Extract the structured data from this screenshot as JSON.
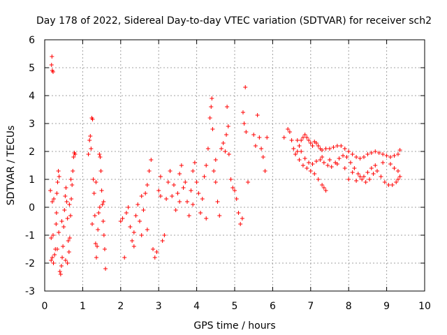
{
  "chart_data": {
    "type": "scatter",
    "title": "Day 178 of 2022, Sidereal Day-to-day VTEC variation (SDTVAR) for receiver sch2",
    "xlabel": "GPS time / hours",
    "ylabel": "SDTVAR / TECUs",
    "xlim": [
      0,
      10
    ],
    "ylim": [
      -3,
      6
    ],
    "xticks": [
      0,
      1,
      2,
      3,
      4,
      5,
      6,
      7,
      8,
      9,
      10
    ],
    "yticks": [
      -3,
      -2,
      -1,
      0,
      1,
      2,
      3,
      4,
      5,
      6
    ],
    "grid": true,
    "marker": "+",
    "color": "#ff0000",
    "series": [
      {
        "name": "SDTVAR",
        "points": [
          [
            0.15,
            0.6
          ],
          [
            0.17,
            -1.1
          ],
          [
            0.18,
            5.1
          ],
          [
            0.19,
            5.4
          ],
          [
            0.2,
            4.9
          ],
          [
            0.22,
            4.85
          ],
          [
            0.24,
            0.3
          ],
          [
            0.2,
            0.2
          ],
          [
            0.22,
            -1.0
          ],
          [
            0.17,
            -1.9
          ],
          [
            0.2,
            -1.8
          ],
          [
            0.23,
            -2.0
          ],
          [
            0.26,
            -1.7
          ],
          [
            0.28,
            -1.5
          ],
          [
            0.3,
            -0.6
          ],
          [
            0.31,
            -0.2
          ],
          [
            0.32,
            0.5
          ],
          [
            0.34,
            0.9
          ],
          [
            0.36,
            1.3
          ],
          [
            0.38,
            1.1
          ],
          [
            0.4,
            -2.3
          ],
          [
            0.42,
            -2.4
          ],
          [
            0.44,
            -2.1
          ],
          [
            0.46,
            -1.8
          ],
          [
            0.48,
            -1.4
          ],
          [
            0.5,
            -0.7
          ],
          [
            0.52,
            -0.1
          ],
          [
            0.54,
            0.4
          ],
          [
            0.56,
            0.7
          ],
          [
            0.58,
            0.2
          ],
          [
            0.6,
            -0.4
          ],
          [
            0.62,
            -1.2
          ],
          [
            0.64,
            -1.6
          ],
          [
            0.66,
            -1.1
          ],
          [
            0.68,
            -0.3
          ],
          [
            0.7,
            0.3
          ],
          [
            0.72,
            0.8
          ],
          [
            0.74,
            1.3
          ],
          [
            0.76,
            1.8
          ],
          [
            0.78,
            1.95
          ],
          [
            0.8,
            1.9
          ],
          [
            0.33,
            -1.5
          ],
          [
            0.37,
            -0.9
          ],
          [
            0.45,
            -0.5
          ],
          [
            0.55,
            -1.9
          ],
          [
            0.6,
            -2.0
          ],
          [
            0.65,
            0.1
          ],
          [
            0.69,
            1.0
          ],
          [
            1.15,
            1.9
          ],
          [
            1.18,
            2.4
          ],
          [
            1.2,
            2.55
          ],
          [
            1.22,
            2.1
          ],
          [
            1.24,
            3.2
          ],
          [
            1.26,
            3.15
          ],
          [
            1.28,
            1.0
          ],
          [
            1.3,
            0.5
          ],
          [
            1.32,
            -0.3
          ],
          [
            1.34,
            -1.3
          ],
          [
            1.36,
            -1.8
          ],
          [
            1.38,
            -1.4
          ],
          [
            1.4,
            -0.8
          ],
          [
            1.42,
            -0.2
          ],
          [
            1.44,
            1.9
          ],
          [
            1.46,
            1.8
          ],
          [
            1.48,
            1.3
          ],
          [
            1.5,
            0.6
          ],
          [
            1.52,
            0.1
          ],
          [
            1.54,
            -0.5
          ],
          [
            1.56,
            -1.0
          ],
          [
            1.58,
            -1.5
          ],
          [
            1.6,
            -2.2
          ],
          [
            1.55,
            0.2
          ],
          [
            1.25,
            -0.6
          ],
          [
            1.35,
            0.9
          ],
          [
            1.45,
            0.0
          ],
          [
            2.05,
            -0.4
          ],
          [
            2.1,
            -1.8
          ],
          [
            2.15,
            -0.2
          ],
          [
            2.2,
            0.0
          ],
          [
            2.25,
            -0.7
          ],
          [
            2.3,
            -1.2
          ],
          [
            2.35,
            -0.9
          ],
          [
            2.4,
            -0.3
          ],
          [
            2.45,
            0.1
          ],
          [
            2.5,
            -0.5
          ],
          [
            2.55,
            -1.0
          ],
          [
            2.6,
            -0.1
          ],
          [
            2.65,
            0.5
          ],
          [
            2.7,
            0.8
          ],
          [
            2.75,
            1.3
          ],
          [
            2.8,
            1.7
          ],
          [
            2.85,
            -1.5
          ],
          [
            2.9,
            -1.8
          ],
          [
            2.95,
            -1.6
          ],
          [
            3.0,
            0.6
          ],
          [
            3.05,
            1.1
          ],
          [
            3.1,
            -1.2
          ],
          [
            3.15,
            -1.0
          ],
          [
            3.2,
            0.3
          ],
          [
            3.25,
            0.9
          ],
          [
            3.3,
            1.3
          ],
          [
            3.35,
            0.4
          ],
          [
            3.4,
            0.8
          ],
          [
            3.45,
            -0.1
          ],
          [
            3.5,
            0.5
          ],
          [
            3.55,
            1.2
          ],
          [
            3.6,
            1.5
          ],
          [
            3.65,
            0.7
          ],
          [
            3.7,
            0.9
          ],
          [
            3.75,
            0.2
          ],
          [
            3.8,
            -0.3
          ],
          [
            3.85,
            0.6
          ],
          [
            3.9,
            1.3
          ],
          [
            3.95,
            1.6
          ],
          [
            4.0,
            0.9
          ],
          [
            4.05,
            0.5
          ],
          [
            4.1,
            -0.2
          ],
          [
            4.15,
            0.3
          ],
          [
            4.2,
            1.1
          ],
          [
            4.25,
            1.5
          ],
          [
            4.3,
            2.1
          ],
          [
            4.35,
            3.2
          ],
          [
            4.38,
            3.6
          ],
          [
            4.4,
            3.9
          ],
          [
            4.42,
            2.8
          ],
          [
            4.45,
            1.3
          ],
          [
            4.5,
            0.9
          ],
          [
            4.55,
            0.2
          ],
          [
            4.6,
            -0.3
          ],
          [
            4.65,
            2.1
          ],
          [
            4.7,
            2.3
          ],
          [
            4.75,
            2.0
          ],
          [
            4.78,
            2.6
          ],
          [
            4.8,
            3.6
          ],
          [
            4.83,
            2.9
          ],
          [
            4.85,
            1.9
          ],
          [
            4.9,
            1.0
          ],
          [
            4.95,
            0.7
          ],
          [
            5.0,
            0.6
          ],
          [
            5.05,
            0.3
          ],
          [
            5.1,
            -0.2
          ],
          [
            5.15,
            -0.6
          ],
          [
            5.2,
            -0.4
          ],
          [
            5.22,
            3.4
          ],
          [
            5.25,
            3.0
          ],
          [
            5.28,
            4.3
          ],
          [
            5.3,
            2.7
          ],
          [
            5.35,
            0.9
          ],
          [
            5.5,
            2.6
          ],
          [
            5.55,
            2.2
          ],
          [
            5.6,
            3.3
          ],
          [
            5.65,
            2.5
          ],
          [
            5.7,
            2.1
          ],
          [
            5.75,
            1.8
          ],
          [
            5.8,
            1.3
          ],
          [
            5.85,
            2.5
          ],
          [
            2.0,
            -0.5
          ],
          [
            2.35,
            -1.4
          ],
          [
            2.55,
            0.4
          ],
          [
            2.7,
            -0.8
          ],
          [
            3.05,
            0.4
          ],
          [
            3.55,
            0.2
          ],
          [
            3.9,
            0.1
          ],
          [
            4.25,
            -0.4
          ],
          [
            4.5,
            1.7
          ],
          [
            6.3,
            2.5
          ],
          [
            6.4,
            2.8
          ],
          [
            6.45,
            2.7
          ],
          [
            6.5,
            2.4
          ],
          [
            6.55,
            2.1
          ],
          [
            6.6,
            1.9
          ],
          [
            6.65,
            2.0
          ],
          [
            6.7,
            2.2
          ],
          [
            6.75,
            2.4
          ],
          [
            6.8,
            2.5
          ],
          [
            6.85,
            2.6
          ],
          [
            6.9,
            2.5
          ],
          [
            6.95,
            2.4
          ],
          [
            7.0,
            2.3
          ],
          [
            7.05,
            2.2
          ],
          [
            7.1,
            2.35
          ],
          [
            7.15,
            2.3
          ],
          [
            7.2,
            2.2
          ],
          [
            7.25,
            2.1
          ],
          [
            7.3,
            2.05
          ],
          [
            7.4,
            2.1
          ],
          [
            7.5,
            2.1
          ],
          [
            7.6,
            2.15
          ],
          [
            7.7,
            2.2
          ],
          [
            7.8,
            2.2
          ],
          [
            7.9,
            2.1
          ],
          [
            8.0,
            2.0
          ],
          [
            8.1,
            1.9
          ],
          [
            8.2,
            1.8
          ],
          [
            8.3,
            1.75
          ],
          [
            8.4,
            1.8
          ],
          [
            8.5,
            1.9
          ],
          [
            8.6,
            1.95
          ],
          [
            8.7,
            2.0
          ],
          [
            8.8,
            1.95
          ],
          [
            8.9,
            1.9
          ],
          [
            9.0,
            1.85
          ],
          [
            9.1,
            1.8
          ],
          [
            9.2,
            1.85
          ],
          [
            9.3,
            1.9
          ],
          [
            9.35,
            2.05
          ],
          [
            6.6,
            1.9
          ],
          [
            6.7,
            1.7
          ],
          [
            6.8,
            1.5
          ],
          [
            6.9,
            1.4
          ],
          [
            7.0,
            1.3
          ],
          [
            7.1,
            1.2
          ],
          [
            7.2,
            1.0
          ],
          [
            7.3,
            0.8
          ],
          [
            7.35,
            0.7
          ],
          [
            7.4,
            0.6
          ],
          [
            6.65,
            2.4
          ],
          [
            6.75,
            2.0
          ],
          [
            6.85,
            1.75
          ],
          [
            6.95,
            1.6
          ],
          [
            7.05,
            1.55
          ],
          [
            7.15,
            1.65
          ],
          [
            7.25,
            1.7
          ],
          [
            7.35,
            1.6
          ],
          [
            7.45,
            1.5
          ],
          [
            7.55,
            1.45
          ],
          [
            7.65,
            1.6
          ],
          [
            7.75,
            1.75
          ],
          [
            7.85,
            1.85
          ],
          [
            7.95,
            1.8
          ],
          [
            8.05,
            1.6
          ],
          [
            8.15,
            1.4
          ],
          [
            8.25,
            1.2
          ],
          [
            8.35,
            1.0
          ],
          [
            8.45,
            0.9
          ],
          [
            8.55,
            1.0
          ],
          [
            8.65,
            1.2
          ],
          [
            8.75,
            1.3
          ],
          [
            8.85,
            1.1
          ],
          [
            8.95,
            0.9
          ],
          [
            9.05,
            0.8
          ],
          [
            9.15,
            0.8
          ],
          [
            9.25,
            0.9
          ],
          [
            9.3,
            1.0
          ],
          [
            9.35,
            1.1
          ],
          [
            7.3,
            1.8
          ],
          [
            7.5,
            1.7
          ],
          [
            7.7,
            1.55
          ],
          [
            7.9,
            1.4
          ],
          [
            8.1,
            1.25
          ],
          [
            8.3,
            1.1
          ],
          [
            8.5,
            1.25
          ],
          [
            8.7,
            1.5
          ],
          [
            8.9,
            1.6
          ],
          [
            9.1,
            1.55
          ],
          [
            9.2,
            1.4
          ],
          [
            9.3,
            1.3
          ],
          [
            8.0,
            1.0
          ],
          [
            8.2,
            0.95
          ],
          [
            8.4,
            1.1
          ],
          [
            8.6,
            1.4
          ]
        ]
      }
    ]
  }
}
